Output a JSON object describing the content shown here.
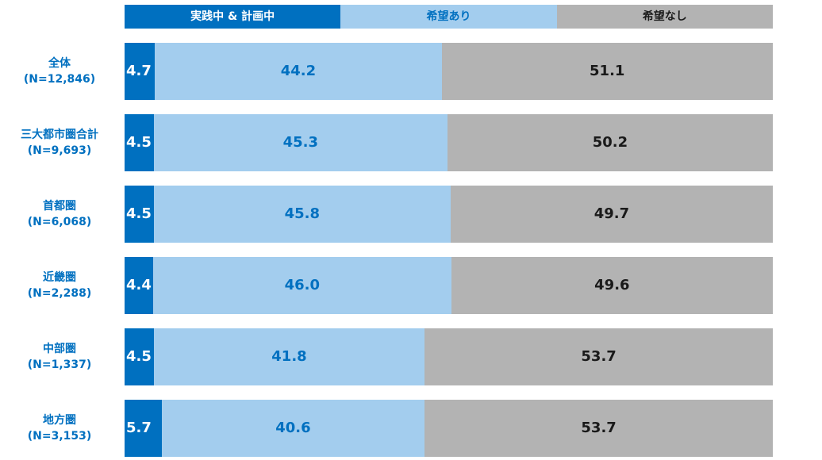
{
  "chart_data": {
    "type": "bar",
    "orientation": "horizontal",
    "stacked": true,
    "percent_stacked": true,
    "categories": [
      {
        "name": "全体",
        "n": "(N=12,846)"
      },
      {
        "name": "三大都市圏合計",
        "n": "(N=9,693)"
      },
      {
        "name": "首都圏",
        "n": "(N=6,068)"
      },
      {
        "name": "近畿圏",
        "n": "(N=2,288)"
      },
      {
        "name": "中部圏",
        "n": "(N=1,337)"
      },
      {
        "name": "地方圏",
        "n": "(N=3,153)"
      }
    ],
    "series": [
      {
        "name": "実践中 & 計画中",
        "color": "#0070c0",
        "label_color": "#ffffff",
        "values": [
          4.7,
          4.5,
          4.5,
          4.4,
          4.5,
          5.7
        ],
        "labels": [
          "4.7",
          "4.5",
          "4.5",
          "4.4",
          "4.5",
          "5.7"
        ]
      },
      {
        "name": "希望あり",
        "color": "#a3cdee",
        "label_color": "#0070c0",
        "values": [
          44.2,
          45.3,
          45.8,
          46.0,
          41.8,
          40.6
        ],
        "labels": [
          "44.2",
          "45.3",
          "45.8",
          "46.0",
          "41.8",
          "40.6"
        ]
      },
      {
        "name": "希望なし",
        "color": "#b3b3b3",
        "label_color": "#1a1a1a",
        "values": [
          51.1,
          50.2,
          49.7,
          49.6,
          53.7,
          53.7
        ],
        "labels": [
          "51.1",
          "50.2",
          "49.7",
          "49.6",
          "53.7",
          "53.7"
        ]
      }
    ],
    "xlim": [
      0,
      100
    ],
    "legend_position": "top",
    "grid": false
  }
}
